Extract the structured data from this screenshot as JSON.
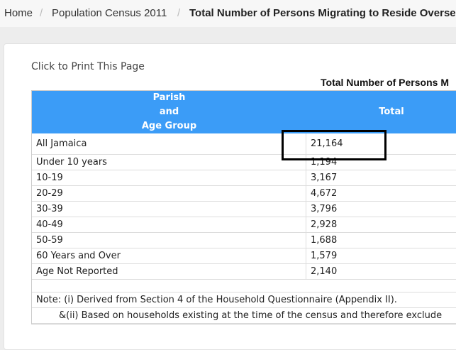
{
  "breadcrumb": [
    "Home",
    "Population Census 2011",
    "Total Number of Persons Migrating to Reside Overseas"
  ],
  "print_link": "Click to Print This Page",
  "table": {
    "title": "Total Number of Persons M",
    "header": {
      "col1": [
        "Parish",
        "and",
        "Age Group"
      ],
      "col2": "Total"
    },
    "rows": [
      [
        "All Jamaica",
        "21,164"
      ],
      [
        "Under 10 years",
        "1,194"
      ],
      [
        "10-19",
        "3,167"
      ],
      [
        "20-29",
        "4,672"
      ],
      [
        "30-39",
        "3,796"
      ],
      [
        "40-49",
        "2,928"
      ],
      [
        "50-59",
        "1,688"
      ],
      [
        "60 Years and Over",
        "1,579"
      ],
      [
        "Age Not Reported",
        "2,140"
      ]
    ],
    "notes": [
      "Note: (i) Derived from Section 4 of the Household Questionnaire (Appendix II).",
      "&(ii) Based on households existing at the time of the census and therefore exclude"
    ]
  }
}
